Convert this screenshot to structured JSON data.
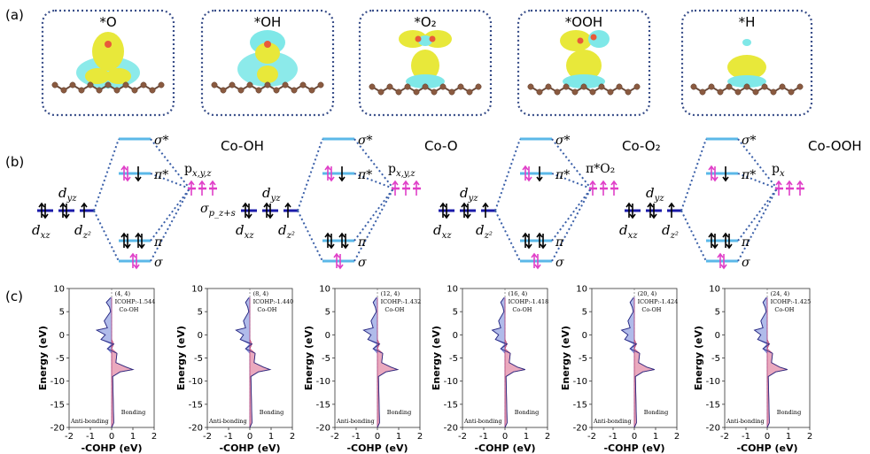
{
  "panel_labels": {
    "a": "(a)",
    "b": "(b)",
    "c": "(c)"
  },
  "adsorbates": [
    {
      "label": "*O"
    },
    {
      "label": "*OH"
    },
    {
      "label": "*O₂"
    },
    {
      "label": "*OOH"
    },
    {
      "label": "*H"
    }
  ],
  "mo_diagrams": [
    {
      "title": "Co-OH",
      "top": "σ*",
      "right_top": "p_x,y,z",
      "right_mid": "σ",
      "right_mid_sub": "p_z+s",
      "pi_star": "π*",
      "pi": "π",
      "sigma": "σ",
      "d_yz": "d_yz",
      "d_xz": "d_xz",
      "d_z2": "d_z²"
    },
    {
      "title": "Co-O",
      "top": "σ*",
      "right_top": "p_x,y,z",
      "pi_star": "π*",
      "pi": "π",
      "sigma": "σ",
      "d_yz": "d_yz",
      "d_xz": "d_xz",
      "d_z2": "d_z²"
    },
    {
      "title": "Co-O₂",
      "top": "σ*",
      "right_top": "π*O₂",
      "pi_star": "π*",
      "pi": "π",
      "sigma": "σ",
      "d_yz": "d_yz",
      "d_xz": "d_xz",
      "d_z2": "d_z²"
    },
    {
      "title": "Co-OOH",
      "top": "σ*",
      "right_top": "p_x",
      "pi_star": "π*",
      "pi": "π",
      "sigma": "σ",
      "d_yz": "d_yz",
      "d_xz": "d_xz",
      "d_z2": "d_z²"
    }
  ],
  "colors": {
    "cyan_level": "#5bb8e8",
    "dark_level": "#1a1aa8",
    "magenta": "#e040c8",
    "dotted": "#3a5fa8",
    "bonding_fill": "#e8a0b8",
    "antibond_fill": "#a8b4e8"
  },
  "chart_data": [
    {
      "type": "area",
      "annotation": "(4, 4)",
      "icohp": "ICOHP:-1.544",
      "pair": "Co-OH",
      "xlabel": "-COHP (eV)",
      "ylabel": "Energy (eV)",
      "xlim": [
        -2,
        2
      ],
      "ylim": [
        -20,
        10
      ],
      "xticks": [
        "-2",
        "-1",
        "0",
        "1",
        "2"
      ],
      "yticks": [
        "10",
        "5",
        "0",
        "-5",
        "-10",
        "-15",
        "-20"
      ],
      "anti_label": "Anti-bonding",
      "bond_label": "Bonding",
      "energy": [
        8,
        7,
        6,
        5,
        3,
        1.5,
        1,
        0,
        -1,
        -2,
        -3,
        -4,
        -6,
        -7,
        -7.5,
        -8,
        -9,
        -19,
        -20
      ],
      "cohp": [
        -0.05,
        -0.25,
        -0.1,
        -0.05,
        -0.35,
        -0.2,
        -0.7,
        -0.3,
        -0.5,
        0.1,
        -0.2,
        0.25,
        0.2,
        0.7,
        1.0,
        0.4,
        0.05,
        0.1,
        0.0
      ]
    },
    {
      "type": "area",
      "annotation": "(8, 4)",
      "icohp": "ICOHP:-1.440",
      "pair": "Co-OH",
      "xlabel": "-COHP (eV)",
      "ylabel": "Energy (eV)",
      "xlim": [
        -2,
        2
      ],
      "ylim": [
        -20,
        10
      ],
      "xticks": [
        "-2",
        "-1",
        "0",
        "1",
        "2"
      ],
      "yticks": [
        "10",
        "5",
        "0",
        "-5",
        "-10",
        "-15",
        "-20"
      ],
      "anti_label": "Anti-bonding",
      "bond_label": "Bonding",
      "energy": [
        8,
        7,
        6,
        5,
        3,
        1.5,
        1,
        0,
        -1,
        -2,
        -3,
        -4,
        -6,
        -7,
        -7.5,
        -8,
        -9,
        -19,
        -20
      ],
      "cohp": [
        -0.05,
        -0.2,
        -0.1,
        -0.05,
        -0.3,
        -0.2,
        -0.65,
        -0.3,
        -0.45,
        0.1,
        -0.2,
        0.25,
        0.2,
        0.65,
        0.95,
        0.4,
        0.05,
        0.1,
        0.0
      ]
    },
    {
      "type": "area",
      "annotation": "(12, 4)",
      "icohp": "ICOHP:-1.432",
      "pair": "Co-OH",
      "xlabel": "-COHP (eV)",
      "ylabel": "Energy (eV)",
      "xlim": [
        -2,
        2
      ],
      "ylim": [
        -20,
        10
      ],
      "xticks": [
        "-2",
        "-1",
        "0",
        "1",
        "2"
      ],
      "yticks": [
        "10",
        "5",
        "0",
        "-5",
        "-10",
        "-15",
        "-20"
      ],
      "anti_label": "Anti-bonding",
      "bond_label": "Bonding",
      "energy": [
        8,
        7,
        6,
        5,
        3,
        1.5,
        1,
        0,
        -1,
        -2,
        -3,
        -4,
        -6,
        -7,
        -7.5,
        -8,
        -9,
        -19,
        -20
      ],
      "cohp": [
        -0.05,
        -0.2,
        -0.1,
        -0.05,
        -0.3,
        -0.2,
        -0.65,
        -0.3,
        -0.45,
        0.1,
        -0.2,
        0.25,
        0.2,
        0.65,
        0.95,
        0.4,
        0.05,
        0.1,
        0.0
      ]
    },
    {
      "type": "area",
      "annotation": "(16, 4)",
      "icohp": "ICOHP:-1.418",
      "pair": "Co-OH",
      "xlabel": "-COHP (eV)",
      "ylabel": "Energy (eV)",
      "xlim": [
        -2,
        2
      ],
      "ylim": [
        -20,
        10
      ],
      "xticks": [
        "-2",
        "-1",
        "0",
        "1",
        "2"
      ],
      "yticks": [
        "10",
        "5",
        "0",
        "-5",
        "-10",
        "-15",
        "-20"
      ],
      "anti_label": "Anti-bonding",
      "bond_label": "Bonding",
      "energy": [
        8,
        7,
        6,
        5,
        3,
        1.5,
        1,
        0,
        -1,
        -2,
        -3,
        -4,
        -6,
        -7,
        -7.5,
        -8,
        -9,
        -19,
        -20
      ],
      "cohp": [
        -0.05,
        -0.2,
        -0.1,
        -0.05,
        -0.3,
        -0.2,
        -0.6,
        -0.3,
        -0.45,
        0.1,
        -0.2,
        0.25,
        0.2,
        0.6,
        0.95,
        0.4,
        0.05,
        0.1,
        0.0
      ]
    },
    {
      "type": "area",
      "annotation": "(20, 4)",
      "icohp": "ICOHP:-1.424",
      "pair": "Co-OH",
      "xlabel": "-COHP (eV)",
      "ylabel": "Energy (eV)",
      "xlim": [
        -2,
        2
      ],
      "ylim": [
        -20,
        10
      ],
      "xticks": [
        "-2",
        "-1",
        "0",
        "1",
        "2"
      ],
      "yticks": [
        "10",
        "5",
        "0",
        "-5",
        "-10",
        "-15",
        "-20"
      ],
      "anti_label": "Anti-bonding",
      "bond_label": "Bonding",
      "energy": [
        8,
        7,
        6,
        5,
        3,
        1.5,
        1,
        0,
        -1,
        -2,
        -3,
        -4,
        -6,
        -7,
        -7.5,
        -8,
        -9,
        -19,
        -20
      ],
      "cohp": [
        -0.05,
        -0.2,
        -0.1,
        -0.05,
        -0.3,
        -0.2,
        -0.6,
        -0.3,
        -0.45,
        0.1,
        -0.2,
        0.25,
        0.2,
        0.6,
        0.95,
        0.4,
        0.05,
        0.1,
        0.0
      ]
    },
    {
      "type": "area",
      "annotation": "(24, 4)",
      "icohp": "ICOHP:-1.425",
      "pair": "Co-OH",
      "xlabel": "-COHP (eV)",
      "ylabel": "Energy (eV)",
      "xlim": [
        -2,
        2
      ],
      "ylim": [
        -20,
        10
      ],
      "xticks": [
        "-2",
        "-1",
        "0",
        "1",
        "2"
      ],
      "yticks": [
        "10",
        "5",
        "0",
        "-5",
        "-10",
        "-15",
        "-20"
      ],
      "anti_label": "Anti-bonding",
      "bond_label": "Bonding",
      "energy": [
        8,
        7,
        6,
        5,
        3,
        1.5,
        1,
        0,
        -1,
        -2,
        -3,
        -4,
        -6,
        -7,
        -7.5,
        -8,
        -9,
        -19,
        -20
      ],
      "cohp": [
        -0.05,
        -0.2,
        -0.1,
        -0.05,
        -0.3,
        -0.2,
        -0.6,
        -0.3,
        -0.45,
        0.1,
        -0.2,
        0.25,
        0.2,
        0.6,
        0.95,
        0.4,
        0.05,
        0.1,
        0.0
      ]
    }
  ]
}
